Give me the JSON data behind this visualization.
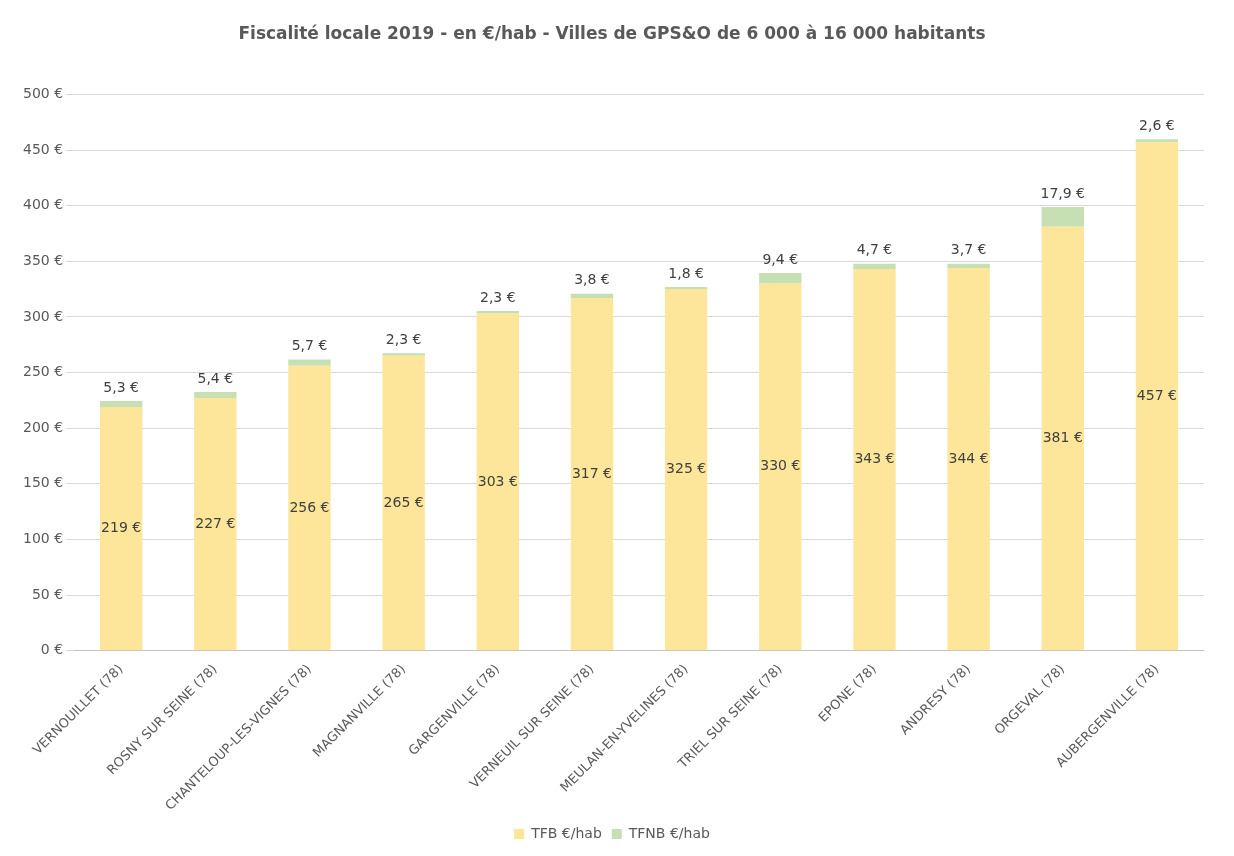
{
  "chart_data": {
    "type": "bar",
    "stacked": true,
    "title": "Fiscalité locale 2019 - en €/hab - Villes de GPS&O de 6 000 à 16 000 habitants",
    "categories": [
      "VERNOUILLET (78)",
      "ROSNY SUR SEINE (78)",
      "CHANTELOUP-LES-VIGNES (78)",
      "MAGNANVILLE (78)",
      "GARGENVILLE (78)",
      "VERNEUIL SUR SEINE (78)",
      "MEULAN-EN-YVELINES (78)",
      "TRIEL SUR SEINE (78)",
      "EPONE (78)",
      "ANDRESY (78)",
      "ORGEVAL (78)",
      "AUBERGENVILLE (78)"
    ],
    "series": [
      {
        "name": "TFB €/hab",
        "color": "#fde699",
        "values": [
          219,
          227,
          256,
          265,
          303,
          317,
          325,
          330,
          343,
          344,
          381,
          457
        ],
        "value_labels": [
          "219 €",
          "227 €",
          "256 €",
          "265 €",
          "303 €",
          "317 €",
          "325 €",
          "330 €",
          "343 €",
          "344 €",
          "381 €",
          "457 €"
        ]
      },
      {
        "name": "TFNB €/hab",
        "color": "#c6e0b4",
        "values": [
          5.3,
          5.4,
          5.7,
          2.3,
          2.3,
          3.8,
          1.8,
          9.4,
          4.7,
          3.7,
          17.9,
          2.6
        ],
        "value_labels": [
          "5,3 €",
          "5,4 €",
          "5,7 €",
          "2,3 €",
          "2,3 €",
          "3,8 €",
          "1,8 €",
          "9,4 €",
          "4,7 €",
          "3,7 €",
          "17,9 €",
          "2,6 €"
        ]
      }
    ],
    "ylim": [
      0,
      500
    ],
    "yticks": [
      {
        "value": 0,
        "label": "0 €"
      },
      {
        "value": 50,
        "label": "50 €"
      },
      {
        "value": 100,
        "label": "100 €"
      },
      {
        "value": 150,
        "label": "150 €"
      },
      {
        "value": 200,
        "label": "200 €"
      },
      {
        "value": 250,
        "label": "250 €"
      },
      {
        "value": 300,
        "label": "300 €"
      },
      {
        "value": 350,
        "label": "350 €"
      },
      {
        "value": 400,
        "label": "400 €"
      },
      {
        "value": 450,
        "label": "450 €"
      },
      {
        "value": 500,
        "label": "500 €"
      }
    ],
    "grid": "y",
    "legend": "bottom"
  }
}
